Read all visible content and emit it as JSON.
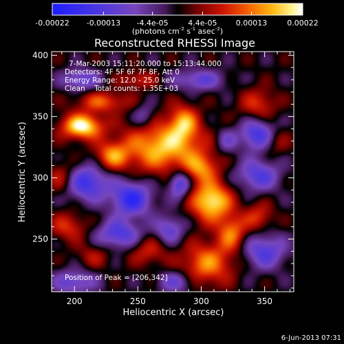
{
  "chart_data": {
    "type": "heatmap",
    "title": "Reconstructed RHESSI Image",
    "xlabel": "Heliocentric X (arcsec)",
    "ylabel": "Heliocentric Y (arcsec)",
    "xlim": [
      182,
      373
    ],
    "ylim": [
      207,
      403
    ],
    "x_ticks": [
      200,
      250,
      300,
      350
    ],
    "y_ticks": [
      250,
      300,
      350,
      400
    ],
    "annotations": [
      "7-Mar-2003 15:11:20.000 to 15:13:44.000",
      "Detectors: 4F 5F 6F 7F 8F, Att 0",
      "Energy Range: 12.0 - 25.0 keV",
      "Clean    Total counts: 1.35E+03"
    ],
    "peak_label": "Position of Peak = [206,342]",
    "colorbar": {
      "min": -0.00022,
      "max": 0.00022,
      "tick_labels": [
        "-0.00022",
        "-0.00013",
        "-4.4e-05",
        "4.4e-05",
        "0.00013",
        "0.00022"
      ],
      "tick_values": [
        -0.00022,
        -0.00013,
        -4.4e-05,
        4.4e-05,
        0.00013,
        0.00022
      ],
      "unit_text": "(photons cm",
      "unit_exp1": "-2",
      "unit_mid": " s",
      "unit_exp2": "-1",
      "unit_mid2": " asec",
      "unit_exp3": "-2",
      "unit_end": ")"
    },
    "sources": [
      {
        "x": 206,
        "y": 342,
        "sx": 11,
        "sy": 7,
        "amp": 0.00022
      },
      {
        "x": 230,
        "y": 318,
        "sx": 9,
        "sy": 8,
        "amp": 0.00013
      },
      {
        "x": 270,
        "y": 325,
        "sx": 22,
        "sy": 14,
        "amp": 0.00018
      },
      {
        "x": 286,
        "y": 345,
        "sx": 8,
        "sy": 10,
        "amp": 0.00014
      },
      {
        "x": 300,
        "y": 308,
        "sx": 9,
        "sy": 8,
        "amp": 0.00012
      },
      {
        "x": 308,
        "y": 281,
        "sx": 11,
        "sy": 11,
        "amp": 0.00021
      },
      {
        "x": 324,
        "y": 255,
        "sx": 8,
        "sy": 10,
        "amp": 0.00013
      },
      {
        "x": 305,
        "y": 230,
        "sx": 14,
        "sy": 12,
        "amp": 0.00014
      },
      {
        "x": 222,
        "y": 362,
        "sx": 14,
        "sy": 6,
        "amp": 0.00011
      },
      {
        "x": 250,
        "y": 380,
        "sx": 10,
        "sy": 5,
        "amp": 8e-05
      },
      {
        "x": 345,
        "y": 360,
        "sx": 10,
        "sy": 9,
        "amp": 9e-05
      },
      {
        "x": 358,
        "y": 330,
        "sx": 8,
        "sy": 8,
        "amp": 7e-05
      },
      {
        "x": 195,
        "y": 260,
        "sx": 10,
        "sy": 8,
        "amp": 9e-05
      },
      {
        "x": 215,
        "y": 236,
        "sx": 9,
        "sy": 7,
        "amp": 6e-05
      },
      {
        "x": 345,
        "y": 268,
        "sx": 8,
        "sy": 8,
        "amp": 9e-05
      },
      {
        "x": 258,
        "y": 240,
        "sx": 10,
        "sy": 8,
        "amp": 8e-05
      },
      {
        "x": 190,
        "y": 300,
        "sx": 8,
        "sy": 9,
        "amp": 8e-05
      },
      {
        "x": 245,
        "y": 283,
        "sx": 11,
        "sy": 10,
        "amp": -0.00018
      },
      {
        "x": 210,
        "y": 296,
        "sx": 12,
        "sy": 10,
        "amp": -0.00016
      },
      {
        "x": 345,
        "y": 335,
        "sx": 10,
        "sy": 9,
        "amp": -0.00016
      },
      {
        "x": 235,
        "y": 254,
        "sx": 12,
        "sy": 8,
        "amp": -0.00014
      },
      {
        "x": 283,
        "y": 295,
        "sx": 6,
        "sy": 8,
        "amp": -0.00015
      },
      {
        "x": 275,
        "y": 258,
        "sx": 8,
        "sy": 8,
        "amp": -0.00011
      },
      {
        "x": 345,
        "y": 302,
        "sx": 12,
        "sy": 9,
        "amp": -0.00013
      },
      {
        "x": 350,
        "y": 240,
        "sx": 12,
        "sy": 10,
        "amp": -0.00013
      },
      {
        "x": 298,
        "y": 380,
        "sx": 14,
        "sy": 6,
        "amp": -0.00011
      },
      {
        "x": 205,
        "y": 380,
        "sx": 10,
        "sy": 6,
        "amp": -0.00012
      },
      {
        "x": 255,
        "y": 350,
        "sx": 6,
        "sy": 7,
        "amp": -8e-05
      },
      {
        "x": 280,
        "y": 215,
        "sx": 10,
        "sy": 6,
        "amp": -0.0001
      },
      {
        "x": 200,
        "y": 215,
        "sx": 12,
        "sy": 7,
        "amp": -0.00011
      },
      {
        "x": 320,
        "y": 330,
        "sx": 6,
        "sy": 7,
        "amp": -8e-05
      }
    ]
  },
  "footer": {
    "timestamp": "6-Jun-2013 07:31"
  }
}
